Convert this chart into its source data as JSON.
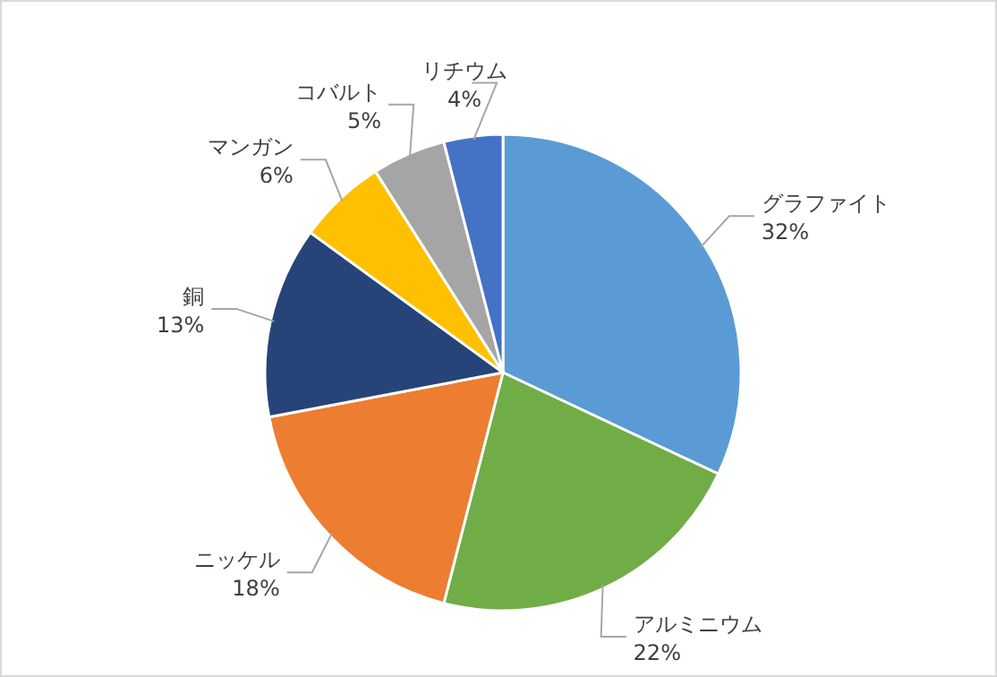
{
  "chart_data": {
    "type": "pie",
    "categories": [
      "グラファイト",
      "アルミニウム",
      "ニッケル",
      "銅",
      "マンガン",
      "コバルト",
      "リチウム"
    ],
    "values": [
      32,
      22,
      18,
      13,
      6,
      5,
      4
    ],
    "value_labels": [
      "32%",
      "22%",
      "18%",
      "13%",
      "6%",
      "5%",
      "4%"
    ],
    "colors": [
      "#5b9bd5",
      "#70ad47",
      "#ed7d31",
      "#264478",
      "#ffc000",
      "#a5a5a5",
      "#4472c4"
    ]
  }
}
